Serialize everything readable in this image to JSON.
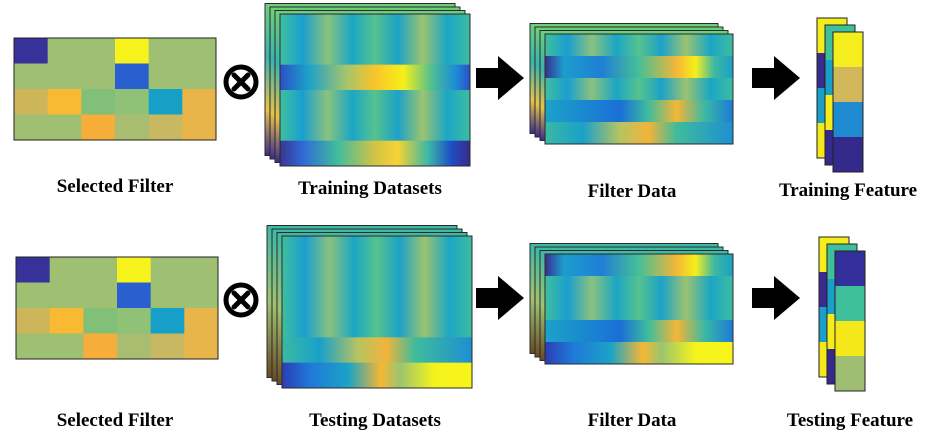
{
  "rows": [
    {
      "id": "training",
      "filter_label": "Selected Filter",
      "datasets_label": "Training Datasets",
      "filter_data_label": "Filter Data",
      "feature_label": "Training Feature"
    },
    {
      "id": "testing",
      "filter_label": "Selected Filter",
      "datasets_label": "Testing Datasets",
      "filter_data_label": "Filter Data",
      "feature_label": "Testing Feature"
    }
  ],
  "operator_symbol": "convolution-operator",
  "colormap": [
    "#3b2a8f",
    "#1f5fd6",
    "#1aa3c9",
    "#3fbfa6",
    "#8cc47a",
    "#f5b632",
    "#f9f01a"
  ],
  "filter_grid": {
    "columns": 6,
    "rows": 4,
    "colors": [
      [
        "#37319a",
        "#9fbf72",
        "#9fbf72",
        "#f6f31c",
        "#9fbf72",
        "#9fbf72"
      ],
      [
        "#9fbf72",
        "#9fbf72",
        "#9fbf72",
        "#2a5fcf",
        "#9fbf72",
        "#9fbf72"
      ],
      [
        "#cdb55a",
        "#f9b932",
        "#82c07a",
        "#8fc277",
        "#16a0c8",
        "#e8b54b"
      ],
      [
        "#9fbf72",
        "#9fbf72",
        "#f7ad3a",
        "#a8bd6f",
        "#c8b861",
        "#e8b54b"
      ]
    ]
  },
  "feature_colors": {
    "training": [
      "#f6ed1f",
      "#d2b75a",
      "#1f8ad0",
      "#342a8c"
    ],
    "testing": [
      "#34309b",
      "#3fbf9c",
      "#f5e81a",
      "#9fbe73"
    ]
  },
  "arrow_color": "#000000"
}
